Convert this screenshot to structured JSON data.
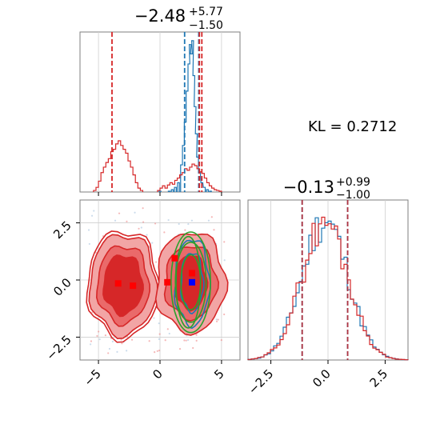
{
  "annotation": {
    "text": "KL = 0.2712"
  },
  "colors": {
    "blue": "#1f77b4",
    "red": "#d62728",
    "green": "#2ca02c",
    "marker_red": "#ff0000",
    "marker_blue": "#0000ff"
  },
  "chart_data": [
    {
      "type": "histogram",
      "panel": "top-left",
      "title": {
        "center": "−2.48",
        "sup": "+5.77",
        "sub": "−1.50"
      },
      "xlim": [
        -6.5,
        6.5
      ],
      "series": [
        {
          "name": "",
          "color": "#1f77b4",
          "bins": [
            [
              0.0,
              1
            ],
            [
              0.75,
              1
            ],
            [
              1.0,
              3
            ],
            [
              1.25,
              6
            ],
            [
              1.5,
              12
            ],
            [
              1.75,
              35
            ],
            [
              1.9,
              60
            ],
            [
              2.05,
              90
            ],
            [
              2.2,
              130
            ],
            [
              2.35,
              165
            ],
            [
              2.45,
              190
            ],
            [
              2.55,
              178
            ],
            [
              2.65,
              195
            ],
            [
              2.75,
              150
            ],
            [
              2.85,
              110
            ],
            [
              2.95,
              75
            ],
            [
              3.05,
              45
            ],
            [
              3.2,
              25
            ],
            [
              3.4,
              12
            ],
            [
              3.6,
              6
            ],
            [
              3.85,
              3
            ],
            [
              4.1,
              1
            ]
          ],
          "quantile_lines": [
            2.0,
            3.15
          ]
        },
        {
          "name": "",
          "color": "#d62728",
          "bins": [
            [
              -5.3,
              2
            ],
            [
              -5.1,
              6
            ],
            [
              -4.9,
              14
            ],
            [
              -4.7,
              25
            ],
            [
              -4.5,
              32
            ],
            [
              -4.3,
              38
            ],
            [
              -4.1,
              43
            ],
            [
              -3.9,
              52
            ],
            [
              -3.7,
              55
            ],
            [
              -3.5,
              62
            ],
            [
              -3.3,
              66
            ],
            [
              -3.1,
              60
            ],
            [
              -2.9,
              55
            ],
            [
              -2.7,
              50
            ],
            [
              -2.5,
              40
            ],
            [
              -2.3,
              32
            ],
            [
              -2.1,
              22
            ],
            [
              -1.9,
              12
            ],
            [
              -1.7,
              5
            ],
            [
              -1.5,
              2
            ],
            [
              -0.1,
              2
            ],
            [
              0.1,
              5
            ],
            [
              0.3,
              8
            ],
            [
              0.5,
              5
            ],
            [
              0.7,
              9
            ],
            [
              0.9,
              12
            ],
            [
              1.1,
              10
            ],
            [
              1.3,
              15
            ],
            [
              1.5,
              18
            ],
            [
              1.7,
              22
            ],
            [
              1.9,
              25
            ],
            [
              2.1,
              30
            ],
            [
              2.3,
              28
            ],
            [
              2.5,
              32
            ],
            [
              2.7,
              36
            ],
            [
              2.9,
              34
            ],
            [
              3.1,
              30
            ],
            [
              3.3,
              26
            ],
            [
              3.5,
              24
            ],
            [
              3.7,
              18
            ],
            [
              3.9,
              12
            ],
            [
              4.1,
              8
            ],
            [
              4.3,
              5
            ],
            [
              4.5,
              3
            ],
            [
              4.7,
              2
            ],
            [
              4.9,
              1
            ]
          ],
          "quantile_lines": [
            -3.9,
            3.2,
            3.4
          ]
        }
      ],
      "xticks": [
        -5,
        0,
        5
      ]
    },
    {
      "type": "histogram",
      "panel": "bottom-right",
      "title": {
        "center": "−0.13",
        "sup": "+0.99",
        "sub": "−1.00"
      },
      "xlim": [
        -3.5,
        3.5
      ],
      "xtick_labels": [
        "−2.5",
        "0.0",
        "2.5"
      ],
      "xticks": [
        -2.5,
        0.0,
        2.5
      ],
      "series": [
        {
          "name": "",
          "color": "#1f77b4",
          "quantile_lines": [
            -1.13,
            0.86
          ]
        },
        {
          "name": "",
          "color": "#d62728",
          "quantile_lines": [
            -1.13,
            0.86
          ]
        }
      ]
    },
    {
      "type": "scatter",
      "panel": "bottom-left",
      "xlim": [
        -6.5,
        6.5
      ],
      "ylim": [
        -3.5,
        3.5
      ],
      "xticks": [
        -5,
        0,
        5
      ],
      "yticks": [
        -2.5,
        0.0,
        2.5
      ],
      "xtick_labels": [
        "−5",
        "0",
        "5"
      ],
      "ytick_labels": [
        "−2.5",
        "0.0",
        "2.5"
      ],
      "red_markers": [
        [
          -3.4,
          -0.15
        ],
        [
          -2.2,
          -0.25
        ],
        [
          0.6,
          -0.1
        ],
        [
          1.2,
          0.95
        ],
        [
          2.6,
          0.3
        ]
      ],
      "blue_markers": [
        [
          2.6,
          -0.1
        ]
      ],
      "gridlines": {
        "x": [
          -5,
          0,
          5
        ],
        "y": [
          -2.5,
          0,
          2.5
        ]
      }
    }
  ]
}
